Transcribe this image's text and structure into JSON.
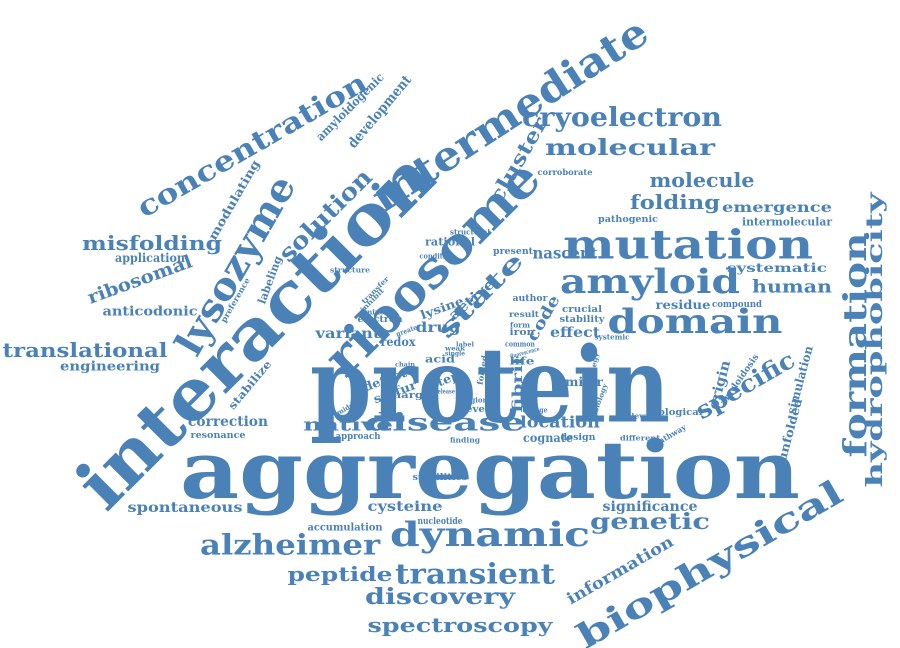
{
  "cloud": {
    "color": "#4a82b8",
    "words": [
      "protein",
      "aggregation",
      "interaction",
      "ribosome",
      "intermediate",
      "mutation",
      "amyloid",
      "domain",
      "biophysical",
      "lysozyme",
      "dynamic",
      "alzheimer",
      "transient",
      "disease",
      "native",
      "state",
      "formation",
      "hydrophobicity",
      "specific",
      "genetic",
      "discovery",
      "spectroscopy",
      "peptide",
      "concentration",
      "solution",
      "cryoelectron",
      "molecular",
      "molecule",
      "folding",
      "misfolding",
      "translational",
      "ribosomal",
      "human",
      "cluster",
      "emergence",
      "intermolecular",
      "systematic",
      "residue",
      "compound",
      "code",
      "active",
      "lysine",
      "drug",
      "effect",
      "crucial",
      "stability",
      "correction",
      "resonance",
      "location",
      "cognate",
      "design",
      "approach",
      "finding",
      "cysteine",
      "nucleotide",
      "accumulation",
      "spontaneous",
      "significance",
      "information",
      "simulation",
      "unfolded",
      "amyloidosis",
      "origin",
      "similar",
      "biological",
      "relevant",
      "different",
      "pathway",
      "change",
      "pathogenic",
      "corroborate",
      "nascent",
      "author",
      "result",
      "iron",
      "form",
      "life",
      "fibril",
      "step",
      "detect",
      "sulfur",
      "charge",
      "stabilities",
      "reveal",
      "variant",
      "redox",
      "electron",
      "mineral",
      "inhibit",
      "structure",
      "rational",
      "condition",
      "present",
      "structural",
      "transfer",
      "greater",
      "labeling",
      "preference",
      "modulating",
      "application",
      "anticodonic",
      "engineering",
      "stabilize",
      "development",
      "amyloidogenic",
      "middle",
      "acid",
      "folded",
      "strategy",
      "biology",
      "systemic",
      "region",
      "release",
      "chain",
      "weak",
      "label",
      "single",
      "common",
      "fluorescence"
    ]
  }
}
